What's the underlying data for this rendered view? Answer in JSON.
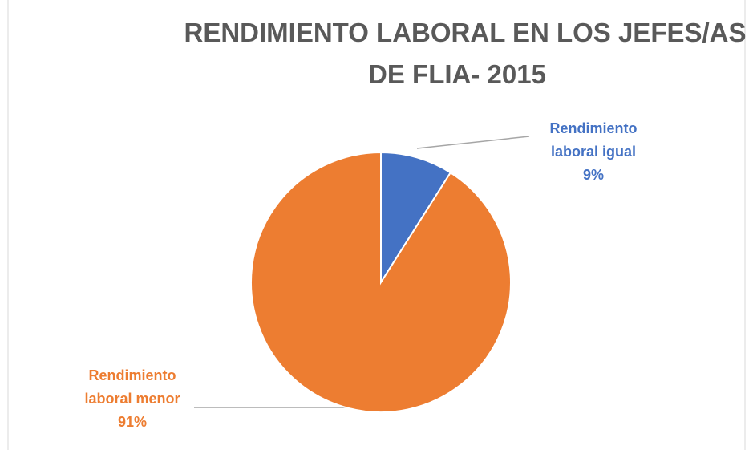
{
  "chart_data": {
    "type": "pie",
    "title": [
      "RENDIMIENTO LABORAL EN LOS JEFES/AS",
      "DE FLIA- 2015"
    ],
    "categories": [
      "Rendimiento laboral igual",
      "Rendimiento laboral menor"
    ],
    "values": [
      9,
      91
    ],
    "value_labels": [
      "9%",
      "91%"
    ],
    "colors": [
      "#4472c4",
      "#ed7d31"
    ]
  }
}
